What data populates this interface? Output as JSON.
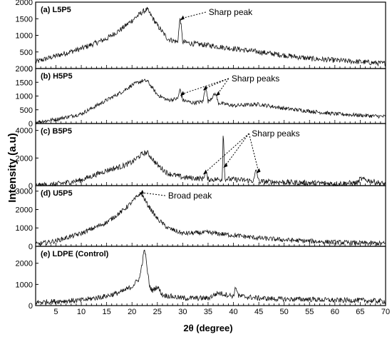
{
  "figure": {
    "ylabel": "Intensity (a.u)",
    "xlabel": "2θ (degree)",
    "x_ticks": [
      5,
      10,
      15,
      20,
      25,
      30,
      35,
      40,
      45,
      50,
      55,
      60,
      65,
      70
    ],
    "xlim": [
      1,
      70
    ]
  },
  "chart_data": [
    {
      "type": "line",
      "panel_label": "(a) L5P5",
      "xlim": [
        1,
        70
      ],
      "ylim": [
        0,
        2000
      ],
      "y_ticks": [
        0,
        500,
        1000,
        1500,
        2000
      ],
      "annotations": [
        {
          "text": "Sharp peak",
          "x": 29.5,
          "y": 1450
        }
      ],
      "series": [
        {
          "x": [
            1,
            5,
            10,
            15,
            18,
            20,
            22,
            23,
            25,
            27,
            29,
            29.5,
            30,
            32,
            35,
            40,
            45,
            50,
            55,
            60,
            65,
            70
          ],
          "y": [
            200,
            380,
            600,
            900,
            1200,
            1450,
            1700,
            1780,
            1300,
            900,
            800,
            1550,
            800,
            750,
            700,
            600,
            500,
            400,
            300,
            250,
            200,
            150
          ]
        }
      ]
    },
    {
      "type": "line",
      "panel_label": "(b) H5P5",
      "xlim": [
        1,
        70
      ],
      "ylim": [
        0,
        2000
      ],
      "y_ticks": [
        0,
        500,
        1000,
        1500,
        2000
      ],
      "annotations": [
        {
          "text": "Sharp peaks",
          "x": [
            29.5,
            34,
            36.5
          ],
          "y": [
            1000,
            1200,
            1000
          ]
        }
      ],
      "series": [
        {
          "x": [
            1,
            5,
            10,
            15,
            18,
            20,
            22,
            23,
            25,
            27,
            29,
            29.5,
            30,
            32,
            34,
            34.5,
            35,
            36.5,
            37,
            40,
            45,
            50,
            55,
            60,
            65,
            70
          ],
          "y": [
            50,
            150,
            350,
            850,
            1150,
            1400,
            1550,
            1550,
            1050,
            850,
            900,
            1250,
            850,
            750,
            800,
            1380,
            800,
            1100,
            750,
            650,
            700,
            550,
            450,
            350,
            300,
            250
          ]
        }
      ]
    },
    {
      "type": "line",
      "panel_label": "(c) B5P5",
      "xlim": [
        1,
        70
      ],
      "ylim": [
        0,
        4500
      ],
      "y_ticks": [
        0,
        2000,
        4000
      ],
      "annotations": [
        {
          "text": "Sharp peaks",
          "x": [
            34,
            38,
            44.5
          ],
          "y": [
            800,
            1300,
            900
          ]
        }
      ],
      "series": [
        {
          "x": [
            1,
            5,
            10,
            15,
            18,
            20,
            22,
            23,
            25,
            27,
            30,
            34,
            34.5,
            35,
            37.8,
            38,
            38.3,
            40,
            44,
            44.5,
            45,
            50,
            55,
            60,
            64.5,
            65,
            70
          ],
          "y": [
            0,
            100,
            400,
            1100,
            1400,
            1700,
            2300,
            2400,
            1500,
            900,
            600,
            500,
            1000,
            450,
            450,
            4300,
            500,
            450,
            350,
            1200,
            300,
            250,
            200,
            150,
            200,
            500,
            100
          ]
        }
      ]
    },
    {
      "type": "line",
      "panel_label": "(d) U5P5",
      "xlim": [
        1,
        70
      ],
      "ylim": [
        0,
        3300
      ],
      "y_ticks": [
        0,
        1000,
        2000,
        3000
      ],
      "annotations": [
        {
          "text": "Broad peak",
          "x": 21.5,
          "y": 2800
        }
      ],
      "series": [
        {
          "x": [
            1,
            5,
            10,
            15,
            18,
            20,
            21.5,
            22,
            23,
            25,
            27,
            30,
            35,
            40,
            45,
            50,
            55,
            60,
            65,
            70
          ],
          "y": [
            100,
            300,
            700,
            1300,
            1900,
            2400,
            2850,
            2800,
            2300,
            1500,
            1000,
            700,
            750,
            600,
            450,
            350,
            280,
            220,
            180,
            150
          ]
        }
      ]
    },
    {
      "type": "line",
      "panel_label": "(e) LDPE (Control)",
      "xlim": [
        1,
        70
      ],
      "ylim": [
        0,
        2800
      ],
      "y_ticks": [
        0,
        1000,
        2000
      ],
      "series": [
        {
          "x": [
            1,
            5,
            10,
            15,
            18,
            20,
            21.5,
            22,
            22.5,
            23,
            23.5,
            24,
            25,
            26,
            30,
            35,
            37,
            40,
            40.5,
            41,
            45,
            50,
            55,
            60,
            65,
            70
          ],
          "y": [
            150,
            200,
            250,
            450,
            650,
            900,
            1300,
            2000,
            2700,
            1700,
            900,
            700,
            900,
            500,
            350,
            350,
            600,
            450,
            900,
            450,
            350,
            300,
            300,
            250,
            250,
            200
          ]
        }
      ]
    }
  ]
}
